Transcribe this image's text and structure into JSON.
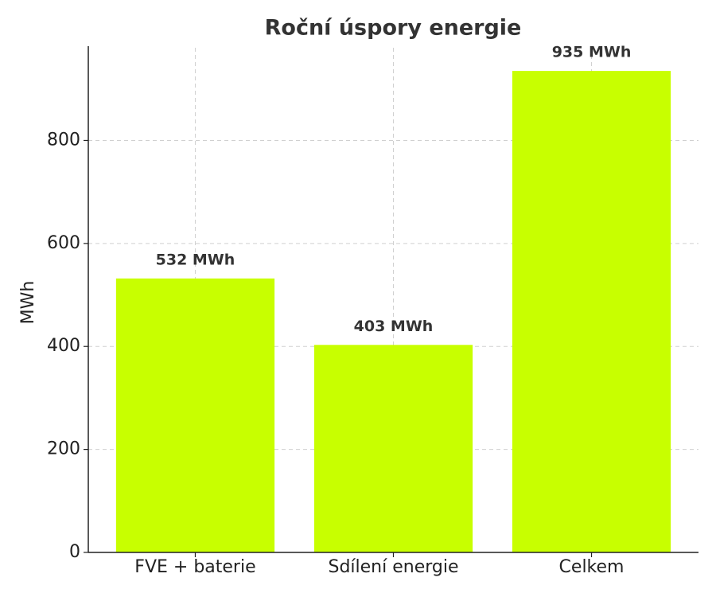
{
  "chart_data": {
    "type": "bar",
    "title": "Roční úspory energie",
    "y_label": "MWh",
    "categories": [
      "FVE + baterie",
      "Sdílení energie",
      "Celkem"
    ],
    "values": [
      532,
      403,
      935
    ],
    "value_labels": [
      "532 MWh",
      "403 MWh",
      "935 MWh"
    ],
    "color": "#c8ff00",
    "ylim": [
      0,
      980
    ],
    "yticks": [
      0,
      200,
      400,
      600,
      800
    ],
    "grid": true
  }
}
